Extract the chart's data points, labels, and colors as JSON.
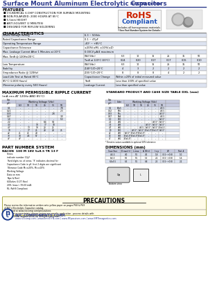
{
  "title_main": "Surface Mount Aluminum Electrolytic Capacitors",
  "title_series": "NACEN Series",
  "features": [
    "CYLINDRICAL V-CHIP CONSTRUCTION FOR SURFACE MOUNTING",
    "NON-POLARIZED: 2000 HOURS AT 85°C",
    "5.5mm HEIGHT",
    "ANTI-SOLVENT (2 MINUTES)",
    "DESIGNED FOR REFLOW SOLDERING"
  ],
  "rohs_line1": "RoHS",
  "rohs_line2": "Compliant",
  "rohs_sub1": "Includes all homogeneous materials",
  "rohs_sub2": "*See Part Number System for Details",
  "char_title": "CHARACTERISTICS",
  "char_simple": [
    [
      "Rated Voltage Rating",
      "6.3 ~ 50Vdc"
    ],
    [
      "Rated Capacitance Range",
      "0.1 ~ 47μF"
    ],
    [
      "Operating Temperature Range",
      "-40° ~ +85°C"
    ],
    [
      "Capacitance Tolerance",
      "±20%(±M), ±10%(±Z)"
    ],
    [
      "Max. Leakage Current After 1 Minutes at 20°C",
      "0.03CV μA/4 maximum"
    ]
  ],
  "tan_label": "Max. Tanδ @ 120Hz/20°C",
  "tan_wv": [
    "6.3",
    "10",
    "16",
    "25",
    "35",
    "50"
  ],
  "tan_vals": [
    "0.24",
    "0.20",
    "0.17",
    "0.17",
    "0.15",
    "0.10"
  ],
  "low_temp_rows": [
    [
      "Low Temperature",
      "W.V.(Vdc)"
    ],
    [
      "Stability",
      "Z-40°C/Z+20°C",
      "4",
      "3",
      "2",
      "2",
      "2",
      "2"
    ],
    [
      "(Impedance Ratio @ 120Hz)",
      "Z-55°C/Z+20°C",
      "8",
      "8",
      "8",
      "4",
      "2",
      "2"
    ]
  ],
  "life_rows": [
    [
      "Load Life Test at Rated 85°C",
      "Capacitance Change",
      "Within ±20% of initial measured value"
    ],
    [
      "85°C (2,000 Hours)",
      "Tanδ",
      "Less than 200% of specified value"
    ],
    [
      "(Reverse polarity every 500 Hours)",
      "Leakage Current",
      "Less than specified value"
    ]
  ],
  "ripple_title": "MAXIMUM PERMISSIBLE RIPPLE CURRENT",
  "ripple_sub": "(mA rms AT 120Hz AND 85°C)",
  "ripple_wv": [
    "6.3",
    "10",
    "16",
    "25",
    "35",
    "50"
  ],
  "ripple_data": [
    [
      "0.1",
      "-",
      "-",
      "-",
      "-",
      "-",
      "7.8"
    ],
    [
      "0.22",
      "-",
      "-",
      "-",
      "-",
      "-",
      "2.3"
    ],
    [
      "0.33",
      "-",
      "-",
      "-",
      "-",
      "2.8",
      ""
    ],
    [
      "0.47",
      "-",
      "-",
      "-",
      "-",
      "",
      "3.0"
    ],
    [
      "1.0",
      "-",
      "-",
      "-",
      "-",
      "-",
      "5.0"
    ],
    [
      "2.2",
      "-",
      "-",
      "-",
      "8.4",
      "9.5",
      ""
    ],
    [
      "3.3",
      "-",
      "-",
      "10",
      "17",
      "18",
      ""
    ],
    [
      "4.7",
      "-",
      "13",
      "19",
      "20",
      "25",
      ""
    ],
    [
      "10",
      "-",
      "17",
      "25",
      "28",
      "28",
      "25"
    ],
    [
      "22",
      "21",
      "25",
      "28",
      "-",
      "-",
      "-"
    ],
    [
      "33",
      "38",
      "4.5",
      "57",
      "-",
      "-",
      "-"
    ],
    [
      "47",
      "47",
      "-",
      "-",
      "-",
      "-",
      "-"
    ]
  ],
  "case_title": "STANDARD PRODUCT AND CASE SIZE TABLE DXL (mm)",
  "case_wv": [
    "6.3",
    "10",
    "16",
    "25",
    "35",
    "50"
  ],
  "case_data": [
    [
      "0.1",
      "E3o5",
      "-",
      "-",
      "-",
      "-",
      "-",
      "4x5.5"
    ],
    [
      "0.22",
      "F3G",
      "-",
      "-",
      "-",
      "-",
      "-",
      "4x5.5"
    ],
    [
      "0.33",
      "F3u",
      "-",
      "-",
      "-",
      "-",
      "-",
      "4x5.5*"
    ],
    [
      "0.47",
      "1A4",
      "-",
      "-",
      "-",
      "-",
      "-",
      "4x5.5"
    ],
    [
      "1.0",
      "1B0",
      "-",
      "-",
      "-",
      "-",
      "-",
      "5x5.5*"
    ],
    [
      "2.2",
      "2B2",
      "-",
      "-",
      "-",
      "-",
      "4x5.5*",
      "5x5.5*"
    ],
    [
      "3.3",
      "2B3",
      "-",
      "-",
      "-",
      "4x5.5*",
      "5x5.5*",
      "5x5.5*"
    ],
    [
      "4.7",
      "4B1",
      "-",
      "-",
      "4x5.5",
      "5x5.5*",
      "5x5.5*",
      "6.3x5.5"
    ],
    [
      "10",
      "1B0",
      "-",
      "4x5.5*",
      "5x5.5*",
      "6.3x5.5*",
      "6.3x5.5*",
      "8x5.5*"
    ],
    [
      "22",
      "2B0",
      "5x5.5*",
      "6.3x5.5*",
      "6.3x5.5*",
      "-",
      "-",
      "-"
    ],
    [
      "33",
      "3B3",
      "6.3x5.5*",
      "6.3x5.5*",
      "6.3x5.5*",
      "-",
      "-",
      "-"
    ],
    [
      "47",
      "4B0",
      "6.3x5.5*",
      "-",
      "-",
      "-",
      "-",
      "-"
    ]
  ],
  "case_note": "* Denotes values available in optional 10% tolerance",
  "part_title": "PART NUMBER SYSTEM",
  "part_example": "NACEN  100 M 18V 5x8.5 TR 13 F",
  "part_lines": [
    "RL: RoHS Compliant",
    "20% for (mA), 9% (B (mA))",
    "600ohm (3.0\") Reel",
    "Tape & Reel",
    "Data on mm",
    "Working Voltage",
    "Tolerance Code M=±20%, M=±10%",
    "Capacitance Code in μF, first 2 digits are significant",
    "Third digits no. of zeros. '9' indicates decimal for",
    "indicate number 10μF",
    "Series"
  ],
  "dim_title": "DIMENSIONS (mm)",
  "dim_headers": [
    "Case Size",
    "D max(+)",
    "L max",
    "A (B+r)",
    "l x p",
    "W",
    "Part #"
  ],
  "dim_rows": [
    [
      "4x5.5",
      "4.0",
      "5.5",
      "4.5",
      "1.8",
      "(-0.5~+0.8)",
      "1.0"
    ],
    [
      "5x5.5",
      "5.0",
      "5.5",
      "5.3",
      "2.1",
      "(-0.5~+0.8)",
      "1.6"
    ],
    [
      "6.3x5.5",
      "6.3",
      "5.5",
      "6.8",
      "2.5",
      "(-0.5~+0.8)",
      "2.2"
    ]
  ],
  "prec_title": "PRECAUTIONS",
  "prec_lines": [
    "Please review the information written onto yellow paper on pages P68 & P69",
    "of NIC's Electrolytic Capacitor catalog.",
    "Also found at www.niccomp.com/precautions",
    "If in doubt or uncertainty, please review our specific application - process details with",
    "NIC's technical support services: SMT@niccomp.com"
  ],
  "footer_logo": "NIC COMPONENTS CORP.",
  "footer_links": "www.niccomp.com | www.kmeÉ®N.com | www.RFpassives.com | www.SMTimagnetics.com",
  "bg": "#ffffff",
  "alt1": "#dde3f0",
  "alt2": "#ffffff",
  "hdr": "#c8cce0",
  "title_blue": "#2d3a8c",
  "border": "#999999"
}
